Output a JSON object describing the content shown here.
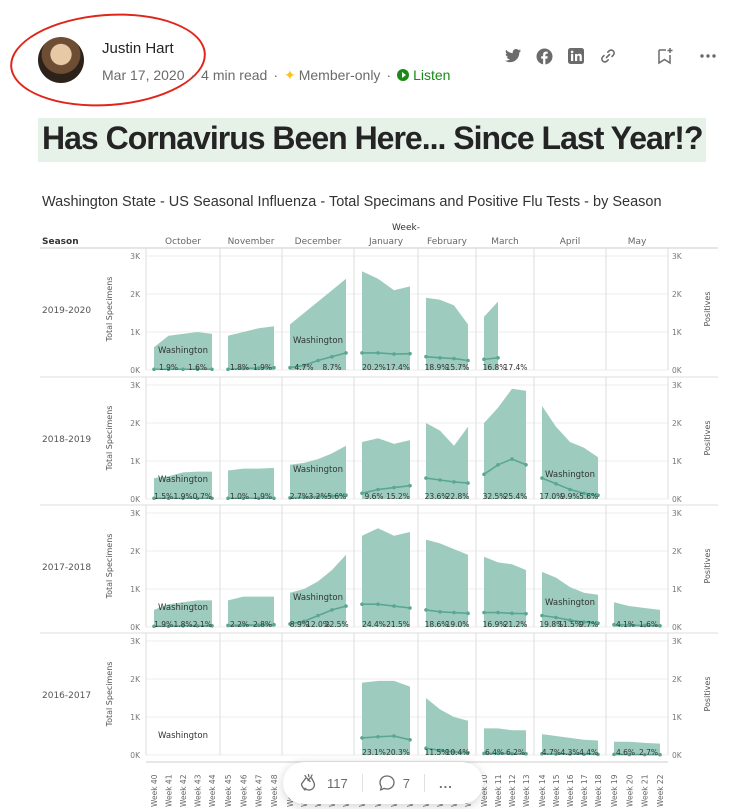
{
  "author": {
    "name": "Justin Hart",
    "avatar_icon": "author-avatar"
  },
  "meta": {
    "date": "Mar 17, 2020",
    "read_time": "4 min read",
    "membership": "Member-only",
    "listen": "Listen",
    "sep": "·"
  },
  "share_icons": [
    "twitter-icon",
    "facebook-icon",
    "linkedin-icon",
    "link-icon",
    "bookmark-add-icon",
    "more-icon"
  ],
  "article": {
    "title": "Has Cornavirus Been Here... Since Last Year!?"
  },
  "colors": {
    "area": "#98c9bb",
    "line": "#5ba692",
    "title_bg": "#e6f1e8",
    "oval": "#e0261b",
    "listen": "#1a8917"
  },
  "chart_data": {
    "type": "area",
    "title": "Washington State - US Seasonal Influenza - Total Specimans and Positive Flu Tests - by Season",
    "column_header": "Week-",
    "row_header": "Season",
    "ylabel_left": "Total Specimens",
    "ylabel_right": "Positives",
    "y_ticks": [
      "3K",
      "2K",
      "1K",
      "0K"
    ],
    "ylim": [
      0,
      3000
    ],
    "months": [
      {
        "name": "October",
        "weeks": [
          "Week 40",
          "Week 41",
          "Week 42",
          "Week 43",
          "Week 44"
        ]
      },
      {
        "name": "November",
        "weeks": [
          "Week 45",
          "Week 46",
          "Week 47",
          "Week 48"
        ]
      },
      {
        "name": "December",
        "weeks": [
          "Week 49",
          "Week 50",
          "Week 51",
          "Week 52",
          "Week 1"
        ]
      },
      {
        "name": "January",
        "weeks": [
          "Week 2",
          "Week 3",
          "Week 4",
          "Week 5"
        ]
      },
      {
        "name": "February",
        "weeks": [
          "Week 6",
          "Week 7",
          "Week 8",
          "Week 9"
        ]
      },
      {
        "name": "March",
        "weeks": [
          "Week 10",
          "Week 11",
          "Week 12",
          "Week 13"
        ]
      },
      {
        "name": "April",
        "weeks": [
          "Week 14",
          "Week 15",
          "Week 16",
          "Week 17",
          "Week 18"
        ]
      },
      {
        "name": "May",
        "weeks": [
          "Week 19",
          "Week 20",
          "Week 21",
          "Week 22"
        ]
      }
    ],
    "seasons": [
      {
        "name": "2019-2020",
        "specimens": [
          [
            600,
            900,
            950,
            1000,
            950
          ],
          [
            900,
            1000,
            1100,
            1150
          ],
          [
            1200,
            1500,
            1800,
            2100,
            2400
          ],
          [
            2600,
            2400,
            2100,
            2200
          ],
          [
            1900,
            1850,
            1700,
            1200
          ],
          [
            1400,
            1800,
            null,
            null
          ],
          [
            null,
            null,
            null,
            null,
            null
          ],
          [
            null,
            null,
            null,
            null
          ]
        ],
        "positives": [
          [
            20,
            20,
            20,
            20,
            20
          ],
          [
            20,
            40,
            50,
            60
          ],
          [
            60,
            120,
            250,
            350,
            450
          ],
          [
            450,
            450,
            420,
            430
          ],
          [
            350,
            320,
            300,
            250
          ],
          [
            280,
            320,
            null,
            null
          ],
          [
            null,
            null,
            null,
            null,
            null
          ],
          [
            null,
            null,
            null,
            null
          ]
        ],
        "labels": [
          "1.9%",
          "1.6%",
          "1.8%",
          "1.9%",
          "4.7%",
          "8.7%",
          "20.2%",
          "17.4%",
          "18.9%",
          "15.7%",
          "16.8%",
          "17.4%"
        ],
        "washington_labels": [
          "Washington",
          "Washington"
        ]
      },
      {
        "name": "2018-2019",
        "specimens": [
          [
            550,
            600,
            700,
            720,
            720
          ],
          [
            750,
            800,
            800,
            820
          ],
          [
            900,
            950,
            1050,
            1200,
            1400
          ],
          [
            1500,
            1600,
            1450,
            1550
          ],
          [
            2000,
            1800,
            1400,
            1900
          ],
          [
            2000,
            2400,
            2900,
            2850
          ],
          [
            2450,
            1900,
            1500,
            1350,
            1100
          ],
          [
            null,
            null,
            null,
            null
          ]
        ],
        "positives": [
          [
            20,
            20,
            20,
            20,
            20
          ],
          [
            20,
            20,
            20,
            20
          ],
          [
            30,
            40,
            60,
            80,
            100
          ],
          [
            150,
            250,
            300,
            350
          ],
          [
            550,
            500,
            450,
            420
          ],
          [
            650,
            900,
            1050,
            900
          ],
          [
            550,
            400,
            250,
            150,
            100
          ],
          [
            null,
            null,
            null,
            null
          ]
        ],
        "labels": [
          "1.5%",
          "1.9%",
          "0.7%",
          "1.0%",
          "1.9%",
          "2.7%",
          "3.2%",
          "5.6%",
          "9.6%",
          "15.2%",
          "23.6%",
          "22.8%",
          "32.5%",
          "25.4%",
          "17.0%",
          "9.9%",
          "5.6%"
        ],
        "washington_labels": [
          "Washington",
          "Washington",
          "Washington"
        ]
      },
      {
        "name": "2017-2018",
        "specimens": [
          [
            450,
            600,
            650,
            700,
            700
          ],
          [
            700,
            800,
            800,
            800
          ],
          [
            900,
            1000,
            1200,
            1500,
            1900
          ],
          [
            2400,
            2600,
            2400,
            2500
          ],
          [
            2300,
            2200,
            2050,
            1900
          ],
          [
            1850,
            1700,
            1650,
            1500
          ],
          [
            1450,
            1300,
            1050,
            900,
            850
          ],
          [
            650,
            550,
            500,
            450
          ]
        ],
        "positives": [
          [
            20,
            20,
            30,
            30,
            30
          ],
          [
            40,
            50,
            50,
            60
          ],
          [
            80,
            150,
            300,
            450,
            550
          ],
          [
            600,
            600,
            550,
            500
          ],
          [
            450,
            400,
            380,
            360
          ],
          [
            380,
            380,
            360,
            350
          ],
          [
            300,
            250,
            180,
            130,
            100
          ],
          [
            60,
            50,
            40,
            30
          ]
        ],
        "labels": [
          "1.9%",
          "1.8%",
          "2.1%",
          "2.2%",
          "2.8%",
          "8.9%",
          "12.0%",
          "22.5%",
          "24.4%",
          "21.5%",
          "18.6%",
          "19.0%",
          "16.9%",
          "21.2%",
          "19.8%",
          "11.5%",
          "9.7%",
          "4.1%",
          "1.6%"
        ],
        "washington_labels": [
          "Washington",
          "Washington",
          "Washington"
        ]
      },
      {
        "name": "2016-2017",
        "specimens": [
          [
            null,
            null,
            null,
            null,
            null
          ],
          [
            null,
            null,
            null,
            null
          ],
          [
            null,
            null,
            null,
            null,
            null
          ],
          [
            1900,
            1950,
            1950,
            1800
          ],
          [
            1500,
            1200,
            1000,
            900
          ],
          [
            700,
            700,
            650,
            650
          ],
          [
            550,
            500,
            450,
            400,
            380
          ],
          [
            350,
            350,
            320,
            300
          ]
        ],
        "positives": [
          [
            null,
            null,
            null,
            null,
            null
          ],
          [
            null,
            null,
            null,
            null
          ],
          [
            null,
            null,
            null,
            null,
            null
          ],
          [
            450,
            480,
            500,
            400
          ],
          [
            180,
            120,
            80,
            60
          ],
          [
            40,
            40,
            35,
            30
          ],
          [
            30,
            25,
            25,
            20,
            15
          ],
          [
            15,
            12,
            10,
            8
          ]
        ],
        "labels": [
          "23.1%",
          "20.3%",
          "11.5%",
          "10.4%",
          "6.4%",
          "6.2%",
          "4.7%",
          "4.3%",
          "4.4%",
          "4.6%",
          "2.7%"
        ],
        "washington_labels": [
          "Washington"
        ]
      }
    ]
  },
  "toolbar": {
    "claps": "117",
    "responses": "7",
    "more": "..."
  }
}
